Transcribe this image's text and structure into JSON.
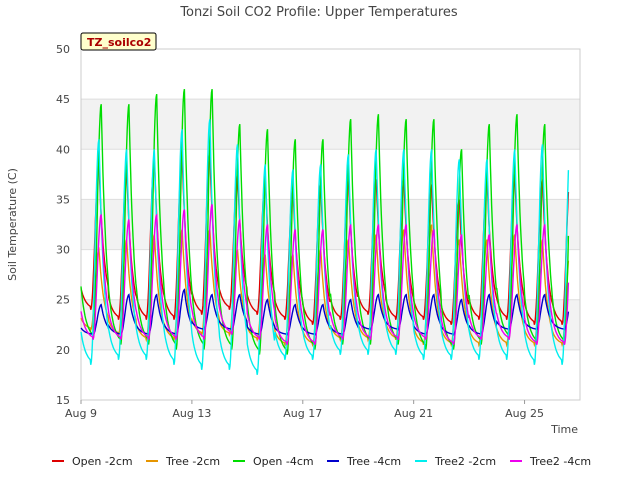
{
  "chart_data": {
    "type": "line",
    "title": "Tonzi Soil CO2 Profile: Upper Temperatures",
    "xlabel": "Time",
    "ylabel": "Soil Temperature (C)",
    "badge": "TZ_soilco2",
    "ylim": [
      15,
      50
    ],
    "yticks": [
      15,
      20,
      25,
      30,
      35,
      40,
      45,
      50
    ],
    "xlim": [
      "2023-08-09",
      "2023-08-27"
    ],
    "xticks": [
      {
        "date": "2023-08-09",
        "label": "Aug 9"
      },
      {
        "date": "2023-08-13",
        "label": "Aug 13"
      },
      {
        "date": "2023-08-17",
        "label": "Aug 17"
      },
      {
        "date": "2023-08-21",
        "label": "Aug 21"
      },
      {
        "date": "2023-08-25",
        "label": "Aug 25"
      }
    ],
    "grid": true,
    "legend_position": "bottom",
    "x_days": [
      "2023-08-09",
      "2023-08-10",
      "2023-08-11",
      "2023-08-12",
      "2023-08-13",
      "2023-08-14",
      "2023-08-15",
      "2023-08-16",
      "2023-08-17",
      "2023-08-18",
      "2023-08-19",
      "2023-08-20",
      "2023-08-21",
      "2023-08-22",
      "2023-08-23",
      "2023-08-24",
      "2023-08-25",
      "2023-08-26"
    ],
    "series": [
      {
        "name": "Open -2cm",
        "color": "#dd0000",
        "daily_max": [
          38.5,
          38,
          39,
          39.5,
          39.5,
          37.5,
          37,
          36,
          36.5,
          37,
          37,
          37,
          36.5,
          35,
          37,
          37.5,
          37,
          37.5
        ],
        "daily_min": [
          24,
          23,
          23,
          23,
          23.5,
          24,
          23.5,
          23,
          22.5,
          23,
          23.5,
          23,
          23,
          22.5,
          23,
          23,
          22.5,
          22.5
        ]
      },
      {
        "name": "Tree -2cm",
        "color": "#e69500",
        "daily_max": [
          30,
          31,
          31.5,
          32,
          32,
          30,
          29.5,
          29.5,
          30,
          31,
          31.5,
          32,
          32.5,
          31,
          31,
          31.5,
          31,
          30
        ],
        "daily_min": [
          22,
          21.5,
          21,
          21,
          21.5,
          21.5,
          21,
          20.5,
          20.5,
          21,
          21,
          21,
          20.5,
          20.5,
          20.5,
          20.5,
          20.5,
          20.5
        ]
      },
      {
        "name": "Open -4cm",
        "color": "#00dd00",
        "daily_max": [
          44.5,
          44.5,
          45.5,
          46,
          46,
          42.5,
          42,
          41,
          41,
          43,
          43.5,
          43,
          43,
          40,
          42.5,
          43.5,
          42.5,
          41.5
        ],
        "daily_min": [
          21,
          20.5,
          20.5,
          20,
          20,
          20,
          19.5,
          19.5,
          20,
          20.5,
          20.5,
          20.5,
          20,
          20,
          20.5,
          21,
          20.5,
          20.5
        ]
      },
      {
        "name": "Tree -4cm",
        "color": "#0000cc",
        "daily_max": [
          24.5,
          25.5,
          25.5,
          26,
          25.5,
          25.5,
          25,
          24.5,
          24.5,
          25,
          25.5,
          25.5,
          25.5,
          25,
          25.5,
          25.5,
          25.5,
          25.5
        ],
        "daily_min": [
          21.5,
          21.5,
          21.5,
          21.5,
          22,
          22,
          21.5,
          21.5,
          21.5,
          21.5,
          22,
          22,
          21.5,
          21.5,
          21.5,
          22,
          22,
          22
        ]
      },
      {
        "name": "Tree2 -2cm",
        "color": "#00eeee",
        "daily_max": [
          41,
          40,
          40,
          42,
          43,
          40.5,
          38.5,
          38,
          38.5,
          39.5,
          40,
          40,
          40,
          39,
          39,
          40,
          40.5,
          40.5
        ],
        "daily_min": [
          18.5,
          19,
          19,
          18.5,
          18,
          18,
          17.5,
          19,
          19,
          19.5,
          19.5,
          19.5,
          19,
          19,
          19,
          19,
          18.5,
          18.5
        ]
      },
      {
        "name": "Tree2 -4cm",
        "color": "#ee00ee",
        "daily_max": [
          33.5,
          33,
          33.5,
          34,
          34.5,
          33,
          32.5,
          32,
          32,
          32.5,
          32.5,
          32.5,
          32,
          31.5,
          31.5,
          32.5,
          32.5,
          32.5
        ],
        "daily_min": [
          21,
          21,
          21,
          21,
          21,
          21.5,
          21,
          20.5,
          20.5,
          21,
          21,
          21,
          21,
          20.5,
          21,
          21,
          20.5,
          20.5
        ]
      }
    ]
  }
}
